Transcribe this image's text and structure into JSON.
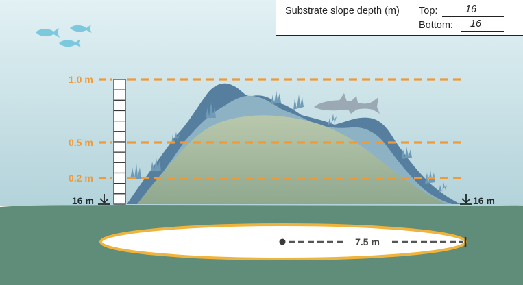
{
  "form": {
    "title": "Substrate slope depth (m)",
    "top_label": "Top:",
    "top_value": "16",
    "bottom_label": "Bottom:",
    "bottom_value": "16"
  },
  "depth_markers": {
    "one": "1.0 m",
    "half": "0.5 m",
    "fifth": "0.2 m"
  },
  "left_depth": "16 m",
  "right_depth": "16 m",
  "radius_label": "7.5 m",
  "colors": {
    "water_top": "#dfeff2",
    "water_bottom": "#b6d5dc",
    "seafloor": "#5f8d79",
    "mound": "#a6b89e",
    "reef_dark": "#4f7fa4",
    "reef_light": "#8fb4c5",
    "dashed_orange": "#ef9a39",
    "ellipse_border": "#f0b43c",
    "fish": "#7cc8dc"
  }
}
